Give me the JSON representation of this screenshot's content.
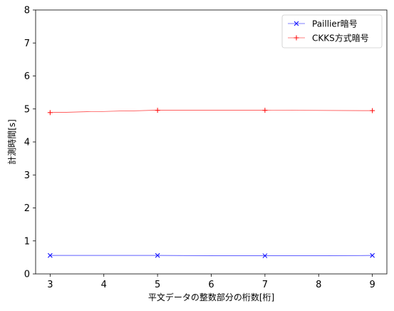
{
  "chart_data": {
    "type": "line",
    "title": "",
    "xlabel": "平文データの整数部分の桁数[桁]",
    "ylabel": "計測時間[s]",
    "xlim": [
      2.73,
      9.27
    ],
    "ylim": [
      0,
      8
    ],
    "xticks": [
      3,
      4,
      5,
      6,
      7,
      8,
      9
    ],
    "yticks": [
      0,
      1,
      2,
      3,
      4,
      5,
      6,
      7,
      8
    ],
    "grid": false,
    "legend_position": "top-right",
    "x": [
      3,
      5,
      7,
      9
    ],
    "series": [
      {
        "name": "Paillier暗号",
        "values": [
          0.56,
          0.56,
          0.55,
          0.56
        ],
        "color": "#0000ff",
        "marker": "x"
      },
      {
        "name": "CKKS方式暗号",
        "values": [
          4.89,
          4.96,
          4.96,
          4.95
        ],
        "color": "#ff0000",
        "marker": "+"
      }
    ]
  }
}
